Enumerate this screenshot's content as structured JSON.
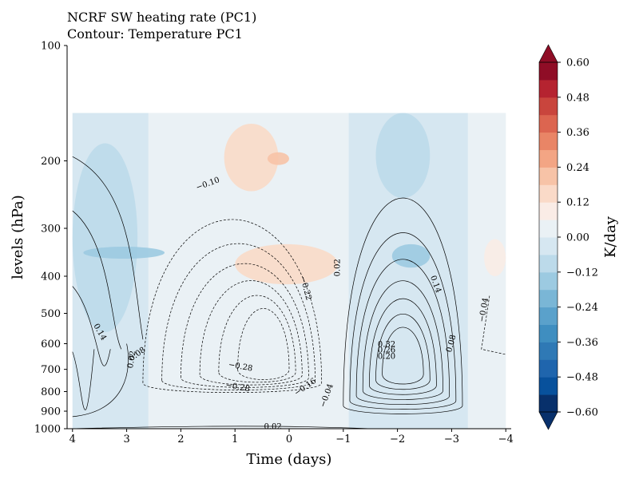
{
  "chart_data": {
    "type": "contour",
    "title_line1": "NCRF SW heating rate (PC1)",
    "title_line2": "Contour: Temperature PC1",
    "xlabel": "Time (days)",
    "ylabel": "levels (hPa)",
    "x_ticks": [
      4,
      3,
      2,
      1,
      0,
      -1,
      -2,
      -3,
      -4
    ],
    "x_tick_labels": [
      "4",
      "3",
      "2",
      "1",
      "0",
      "−1",
      "−2",
      "−3",
      "−4"
    ],
    "xlim": [
      4.1,
      -4.1
    ],
    "y_scale": "log",
    "y_ticks": [
      100,
      200,
      300,
      400,
      500,
      600,
      700,
      800,
      900,
      1000
    ],
    "y_tick_labels": [
      "100",
      "200",
      "300",
      "400",
      "500",
      "600",
      "700",
      "800",
      "900",
      "1000"
    ],
    "ylim": [
      1000,
      100
    ],
    "filled_field": {
      "name": "NCRF SW heating rate",
      "unit_label": "K/day",
      "levels": [
        -0.6,
        -0.54,
        -0.48,
        -0.42,
        -0.36,
        -0.3,
        -0.24,
        -0.18,
        -0.12,
        -0.06,
        0.0,
        0.06,
        0.12,
        0.18,
        0.24,
        0.3,
        0.36,
        0.42,
        0.48,
        0.54,
        0.6
      ],
      "colorbar_ticks": [
        0.6,
        0.48,
        0.36,
        0.24,
        0.12,
        0.0,
        -0.12,
        -0.24,
        -0.36,
        -0.48,
        -0.6
      ],
      "colorbar_tick_labels": [
        "0.60",
        "0.48",
        "0.36",
        "0.24",
        "0.12",
        "0.00",
        "−0.12",
        "−0.24",
        "−0.36",
        "−0.48",
        "−0.60"
      ],
      "colorbar_extend": "both",
      "colormap": "RdBu_r",
      "colors": [
        "#08306b",
        "#08519c",
        "#1f65ad",
        "#2f79b5",
        "#3f8ec0",
        "#5aa1cb",
        "#7ab6d6",
        "#9ccae1",
        "#bcdaea",
        "#d6e7f1",
        "#eaf1f5",
        "#faece6",
        "#fadac8",
        "#f7c3a7",
        "#f3a584",
        "#e98566",
        "#dc6550",
        "#c9453d",
        "#b52330",
        "#8f0d26"
      ],
      "regions": [
        {
          "x": [
            4,
            2.8
          ],
          "p": [
            180,
            560
          ],
          "value": -0.08
        },
        {
          "x": [
            3.8,
            2.3
          ],
          "p": [
            335,
            360
          ],
          "value": -0.18
        },
        {
          "x": [
            1.2,
            0.2
          ],
          "p": [
            160,
            240
          ],
          "value": 0.16
        },
        {
          "x": [
            0.4,
            0.0
          ],
          "p": [
            190,
            205
          ],
          "value": 0.22
        },
        {
          "x": [
            1.0,
            -0.9
          ],
          "p": [
            330,
            420
          ],
          "value": 0.14
        },
        {
          "x": [
            -1.6,
            -2.6
          ],
          "p": [
            150,
            250
          ],
          "value": -0.1
        },
        {
          "x": [
            -1.9,
            -2.6
          ],
          "p": [
            330,
            380
          ],
          "value": -0.14
        },
        {
          "x": [
            -3.6,
            -4
          ],
          "p": [
            320,
            400
          ],
          "value": 0.08
        }
      ]
    },
    "contour_field": {
      "name": "Temperature PC1",
      "labeled_values": [
        -0.1,
        -0.22,
        -0.28,
        -0.28,
        -0.16,
        -0.04,
        -0.04,
        0.02,
        0.02,
        0.02,
        0.08,
        0.08,
        0.14,
        0.14,
        0.2,
        0.26,
        0.32
      ]
    }
  }
}
